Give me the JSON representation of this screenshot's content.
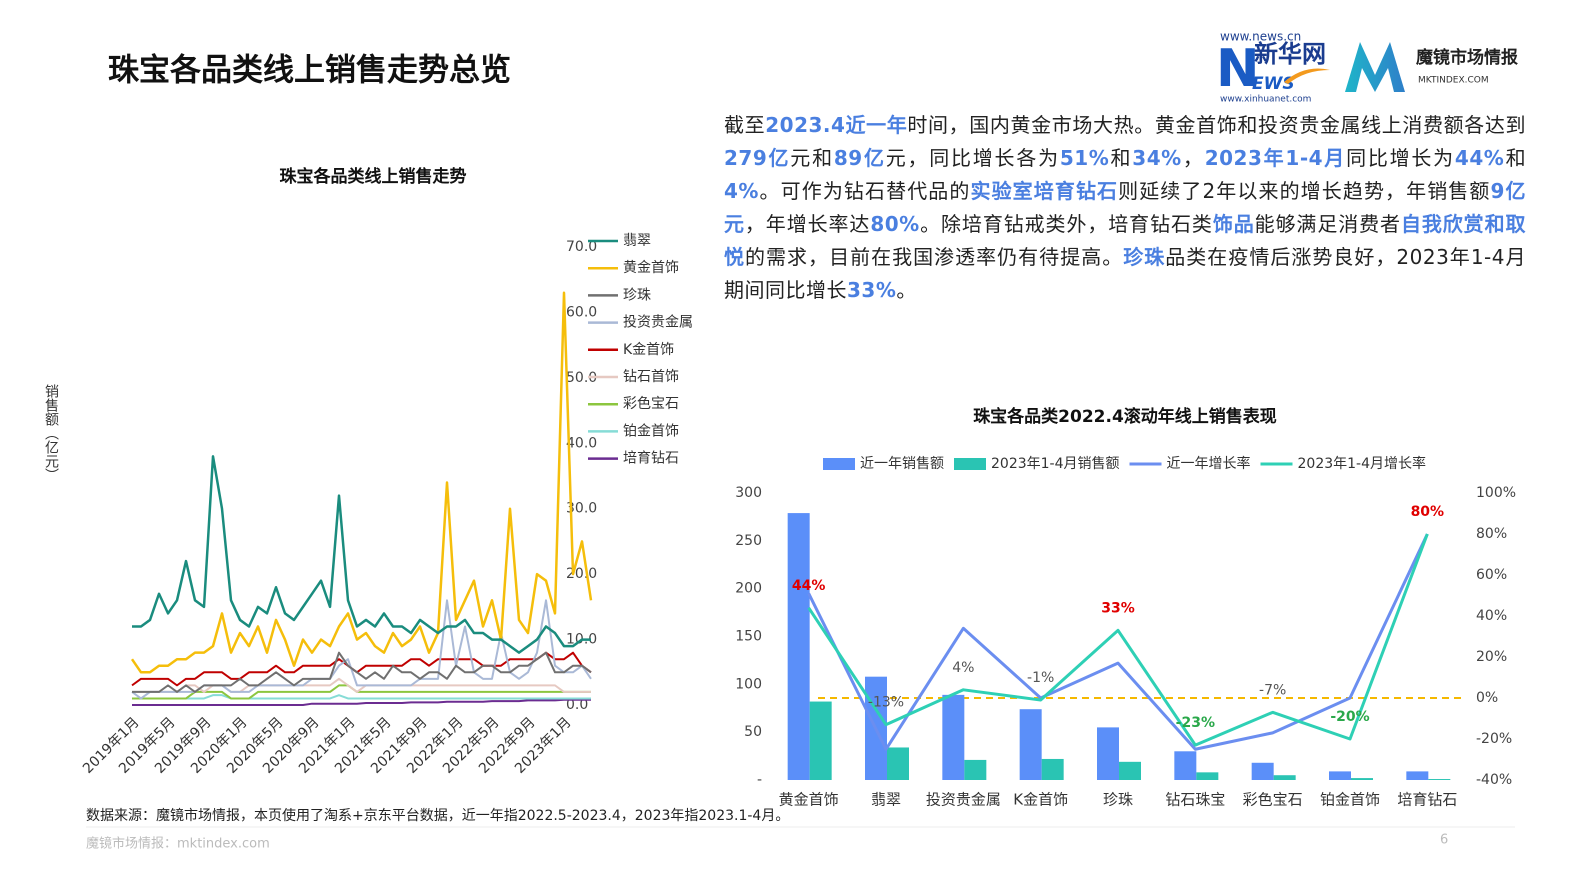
{
  "header": {
    "title": "珠宝各品类线上销售走势总览"
  },
  "logos": {
    "news_url": "www.news.cn",
    "xinhua_n": "N",
    "xinhua_name": "新华网",
    "xinhua_ews": "EWS",
    "xinhua_url": "www.xinhuanet.com",
    "mkt_name": "魔镜市场情报",
    "mkt_url": "MKTINDEX.COM"
  },
  "paragraph": [
    {
      "text": "截至",
      "emphasis": false
    },
    {
      "text": "2023.4近一年",
      "emphasis": true
    },
    {
      "text": "时间，国内黄金市场大热。黄金首饰和投资贵金属线上消费额各达到",
      "emphasis": false
    },
    {
      "text": "279亿",
      "emphasis": true
    },
    {
      "text": "元和",
      "emphasis": false
    },
    {
      "text": "89亿",
      "emphasis": true
    },
    {
      "text": "元，同比增长各为",
      "emphasis": false
    },
    {
      "text": "51%",
      "emphasis": true
    },
    {
      "text": "和",
      "emphasis": false
    },
    {
      "text": "34%",
      "emphasis": true
    },
    {
      "text": "，",
      "emphasis": false
    },
    {
      "text": "2023年1-4月",
      "emphasis": true
    },
    {
      "text": "同比增长为",
      "emphasis": false
    },
    {
      "text": "44%",
      "emphasis": true
    },
    {
      "text": "和",
      "emphasis": false
    },
    {
      "text": "4%",
      "emphasis": true
    },
    {
      "text": "。可作为钻石替代品的",
      "emphasis": false
    },
    {
      "text": "实验室培育钻石",
      "emphasis": true
    },
    {
      "text": "则延续了2年以来的增长趋势，年销售额",
      "emphasis": false
    },
    {
      "text": "9亿元",
      "emphasis": true
    },
    {
      "text": "，年增长率达",
      "emphasis": false
    },
    {
      "text": "80%",
      "emphasis": true
    },
    {
      "text": "。除培育钻戒类外，培育钻石类",
      "emphasis": false
    },
    {
      "text": "饰品",
      "emphasis": true
    },
    {
      "text": "能够满足消费者",
      "emphasis": false
    },
    {
      "text": "自我欣赏和取悦",
      "emphasis": true
    },
    {
      "text": "的需求，目前在我国渗透率仍有待提高。",
      "emphasis": false
    },
    {
      "text": "珍珠",
      "emphasis": true
    },
    {
      "text": "品类在疫情后涨势良好，2023年1-4月期间同比增长",
      "emphasis": false
    },
    {
      "text": "33%",
      "emphasis": true
    },
    {
      "text": "。",
      "emphasis": false
    }
  ],
  "footer": {
    "source": "数据来源：魔镜市场情报，本页使用了淘系+京东平台数据，近一年指2022.5-2023.4，2023年指2023.1-4月。",
    "site": "魔镜市场情报：mktindex.com",
    "page": "6"
  },
  "chart_data": [
    {
      "type": "line",
      "title": "珠宝各品类线上销售走势",
      "y_label": "销售额（亿元）",
      "categories": [
        "2019年1月",
        null,
        null,
        null,
        "2019年5月",
        null,
        null,
        null,
        "2019年9月",
        null,
        null,
        null,
        "2020年1月",
        null,
        null,
        null,
        "2020年5月",
        null,
        null,
        null,
        "2020年9月",
        null,
        null,
        null,
        "2021年1月",
        null,
        null,
        null,
        "2021年5月",
        null,
        null,
        null,
        "2021年9月",
        null,
        null,
        null,
        "2022年1月",
        null,
        null,
        null,
        "2022年5月",
        null,
        null,
        null,
        "2022年9月",
        null,
        null,
        null,
        "2023年1月",
        null,
        null,
        null
      ],
      "ylim": [
        0,
        70
      ],
      "yticks": [
        {
          "value": 0,
          "label": "0.0"
        },
        {
          "value": 10,
          "label": "10.0"
        },
        {
          "value": 20,
          "label": "20.0"
        },
        {
          "value": 30,
          "label": "30.0"
        },
        {
          "value": 40,
          "label": "40.0"
        },
        {
          "value": 50,
          "label": "50.0"
        },
        {
          "value": 60,
          "label": "60.0"
        },
        {
          "value": 70,
          "label": "70.0"
        }
      ],
      "series": [
        {
          "name": "翡翠",
          "color": "#1a8c7e",
          "values": [
            12,
            12,
            13,
            17,
            14,
            16,
            22,
            16,
            15,
            38,
            30,
            16,
            13,
            12,
            15,
            14,
            18,
            14,
            13,
            15,
            17,
            19,
            15,
            32,
            16,
            12,
            13,
            12,
            14,
            12,
            12,
            11,
            13,
            12,
            11,
            12,
            12,
            13,
            11,
            11,
            10,
            10,
            9,
            8,
            9,
            10,
            12,
            11,
            9,
            9,
            10,
            10
          ]
        },
        {
          "name": "黄金首饰",
          "color": "#f5be0b",
          "values": [
            7,
            5,
            5,
            6,
            6,
            7,
            7,
            8,
            8,
            9,
            14,
            8,
            11,
            9,
            12,
            8,
            13,
            10,
            6,
            10,
            8,
            10,
            9,
            12,
            14,
            10,
            11,
            9,
            8,
            11,
            9,
            10,
            12,
            8,
            11,
            34,
            13,
            16,
            19,
            12,
            16,
            10,
            30,
            13,
            11,
            20,
            19,
            14,
            63,
            20,
            25,
            16
          ]
        },
        {
          "name": "珍珠",
          "color": "#707070",
          "values": [
            2,
            2,
            2,
            2,
            3,
            2,
            3,
            2,
            3,
            3,
            3,
            3,
            4,
            3,
            3,
            4,
            5,
            4,
            3,
            4,
            4,
            4,
            4,
            8,
            6,
            5,
            4,
            5,
            4,
            6,
            5,
            5,
            4,
            5,
            5,
            4,
            6,
            5,
            5,
            6,
            6,
            5,
            5,
            6,
            6,
            7,
            8,
            5,
            5,
            6,
            6,
            5
          ]
        },
        {
          "name": "投资贵金属",
          "color": "#aab9d6",
          "values": [
            2,
            1,
            2,
            2,
            2,
            2,
            2,
            2,
            3,
            3,
            3,
            2,
            2,
            2,
            3,
            3,
            3,
            3,
            3,
            3,
            4,
            4,
            4,
            6,
            7,
            3,
            3,
            3,
            3,
            3,
            3,
            3,
            4,
            4,
            4,
            16,
            6,
            12,
            5,
            4,
            4,
            11,
            5,
            4,
            5,
            8,
            16,
            6,
            5,
            5,
            6,
            4
          ]
        },
        {
          "name": "K金首饰",
          "color": "#c00000",
          "values": [
            3,
            4,
            4,
            4,
            4,
            3,
            4,
            4,
            5,
            5,
            5,
            4,
            4,
            5,
            5,
            5,
            6,
            5,
            5,
            6,
            6,
            6,
            6,
            7,
            6,
            5,
            6,
            6,
            6,
            6,
            6,
            7,
            7,
            6,
            7,
            7,
            7,
            7,
            7,
            6,
            6,
            6,
            7,
            7,
            7,
            7,
            8,
            7,
            7,
            8,
            6,
            5
          ]
        },
        {
          "name": "钻石首饰",
          "color": "#e6c9c2",
          "values": [
            2,
            2,
            2,
            2,
            2,
            2,
            3,
            3,
            2,
            3,
            3,
            2,
            2,
            3,
            3,
            3,
            3,
            3,
            3,
            3,
            3,
            3,
            3,
            4,
            3,
            2,
            3,
            3,
            3,
            3,
            3,
            3,
            3,
            3,
            3,
            3,
            3,
            3,
            3,
            3,
            3,
            3,
            3,
            3,
            3,
            3,
            3,
            3,
            2,
            2,
            2,
            2
          ]
        },
        {
          "name": "彩色宝石",
          "color": "#8cc63f",
          "values": [
            1,
            1,
            1,
            1,
            1,
            1,
            1,
            2,
            2,
            2,
            2,
            1,
            1,
            1,
            2,
            2,
            2,
            2,
            2,
            2,
            2,
            2,
            2,
            3,
            3,
            2,
            2,
            2,
            2,
            2,
            2,
            2,
            2,
            2,
            2,
            2,
            2,
            2,
            2,
            2,
            2,
            2,
            2,
            2,
            2,
            2,
            2,
            2,
            2,
            2,
            2,
            2
          ]
        },
        {
          "name": "铂金首饰",
          "color": "#86dcd6",
          "values": [
            1,
            1,
            1,
            1,
            1,
            1,
            1,
            1,
            1,
            1.5,
            1.5,
            1,
            1,
            1,
            1,
            1,
            1,
            1,
            1,
            1,
            1,
            1,
            1,
            1.5,
            1,
            1,
            1,
            1,
            1,
            1,
            1,
            1,
            1,
            1,
            1,
            1,
            1,
            1,
            1,
            1,
            1,
            1,
            1,
            1,
            1,
            1,
            1,
            1,
            1,
            1,
            1,
            1
          ]
        },
        {
          "name": "培育钻石",
          "color": "#6b2c91",
          "values": [
            0,
            0,
            0,
            0,
            0,
            0,
            0,
            0,
            0,
            0,
            0,
            0,
            0,
            0,
            0,
            0,
            0,
            0,
            0,
            0,
            0.2,
            0.2,
            0.2,
            0.2,
            0.2,
            0.2,
            0.3,
            0.3,
            0.3,
            0.3,
            0.3,
            0.4,
            0.4,
            0.4,
            0.4,
            0.5,
            0.5,
            0.5,
            0.5,
            0.5,
            0.6,
            0.6,
            0.6,
            0.6,
            0.7,
            0.7,
            0.7,
            0.7,
            0.8,
            0.8,
            0.8,
            0.8
          ]
        }
      ]
    },
    {
      "type": "combo",
      "title": "珠宝各品类2022.4滚动年线上销售表现",
      "categories": [
        "黄金首饰",
        "翡翠",
        "投资贵金属",
        "K金首饰",
        "珍珠",
        "钻石珠宝",
        "彩色宝石",
        "铂金首饰",
        "培育钻石"
      ],
      "ylim": [
        0,
        300
      ],
      "yticks": [
        {
          "value": 0,
          "label": "-"
        },
        50,
        100,
        150,
        200,
        250,
        300
      ],
      "y2lim": [
        -40,
        100
      ],
      "y2ticks": [
        {
          "value": -40,
          "label": "-40%"
        },
        {
          "value": -20,
          "label": "-20%"
        },
        {
          "value": 0,
          "label": "0%"
        },
        {
          "value": 20,
          "label": "20%"
        },
        {
          "value": 40,
          "label": "40%"
        },
        {
          "value": 60,
          "label": "60%"
        },
        {
          "value": 80,
          "label": "80%"
        },
        {
          "value": 100,
          "label": "100%"
        }
      ],
      "reference_line": {
        "axis": "y2",
        "value": 0,
        "color": "#f5b800"
      },
      "series": [
        {
          "name": "近一年销售额",
          "type": "bar",
          "color": "#5b8ff9",
          "values": [
            279,
            108,
            89,
            74,
            55,
            30,
            18,
            9,
            9
          ]
        },
        {
          "name": "2023年1-4月销售额",
          "type": "bar",
          "color": "#2ac4b3",
          "values": [
            82,
            34,
            21,
            22,
            19,
            8,
            5,
            2,
            1
          ]
        },
        {
          "name": "近一年增长率",
          "type": "line",
          "axis": "y2",
          "color": "#6b8ef0",
          "values": [
            51,
            -25,
            34,
            0,
            17,
            -25,
            -17,
            0,
            80
          ]
        },
        {
          "name": "2023年1-4月增长率",
          "type": "line",
          "axis": "y2",
          "color": "#2ed0b5",
          "values": [
            44,
            -13,
            4,
            -1,
            33,
            -23,
            -7,
            -20,
            80
          ],
          "value_labels": [
            "44%",
            "-13%",
            "4%",
            "-1%",
            "33%",
            "-23%",
            "-7%",
            "-20%",
            "80%"
          ],
          "value_label_colors": [
            "#e00000",
            "#555555",
            "#555555",
            "#555555",
            "#e00000",
            "#2aa84a",
            "#555555",
            "#2aa84a",
            "#e00000"
          ]
        }
      ]
    }
  ]
}
